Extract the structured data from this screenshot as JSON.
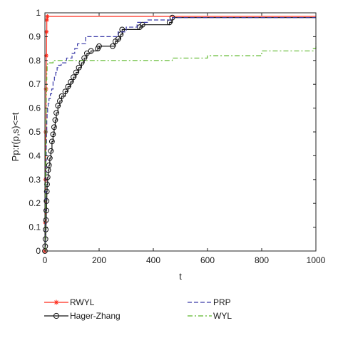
{
  "chart_data": {
    "type": "line",
    "xlabel": "t",
    "ylabel": "Pp:r(p,s)<=t",
    "xlim": [
      0,
      1000
    ],
    "ylim": [
      0,
      1
    ],
    "x_ticks": [
      0,
      200,
      400,
      600,
      800,
      1000
    ],
    "y_ticks": [
      0,
      0.1,
      0.2,
      0.3,
      0.4,
      0.5,
      0.6,
      0.7,
      0.8,
      0.9,
      1
    ],
    "x_tick_labels": [
      "0",
      "200",
      "400",
      "600",
      "800",
      "1000"
    ],
    "y_tick_labels": [
      "0",
      "0.1",
      "0.2",
      "0.3",
      "0.4",
      "0.5",
      "0.6",
      "0.7",
      "0.8",
      "0.9",
      "1"
    ],
    "grid": false,
    "legend_position": "below",
    "series": [
      {
        "name": "RWYL",
        "color": "#ff2a1a",
        "style": "solid",
        "marker": "star",
        "points": [
          [
            0,
            0
          ],
          [
            1,
            0.12
          ],
          [
            2,
            0.3
          ],
          [
            3,
            0.5
          ],
          [
            4,
            0.68
          ],
          [
            5,
            0.82
          ],
          [
            6,
            0.92
          ],
          [
            7,
            0.97
          ],
          [
            9,
            0.985
          ],
          [
            1000,
            0.985
          ]
        ]
      },
      {
        "name": "Hager-Zhang",
        "color": "#111111",
        "style": "solid",
        "marker": "circle",
        "points": [
          [
            0,
            0
          ],
          [
            1,
            0.02
          ],
          [
            2,
            0.05
          ],
          [
            3,
            0.09
          ],
          [
            4,
            0.13
          ],
          [
            5,
            0.17
          ],
          [
            6,
            0.21
          ],
          [
            7,
            0.25
          ],
          [
            8,
            0.28
          ],
          [
            10,
            0.31
          ],
          [
            12,
            0.34
          ],
          [
            15,
            0.36
          ],
          [
            18,
            0.39
          ],
          [
            22,
            0.42
          ],
          [
            26,
            0.46
          ],
          [
            30,
            0.49
          ],
          [
            34,
            0.52
          ],
          [
            38,
            0.55
          ],
          [
            42,
            0.58
          ],
          [
            48,
            0.61
          ],
          [
            55,
            0.63
          ],
          [
            62,
            0.65
          ],
          [
            75,
            0.67
          ],
          [
            85,
            0.69
          ],
          [
            95,
            0.71
          ],
          [
            105,
            0.73
          ],
          [
            115,
            0.75
          ],
          [
            125,
            0.77
          ],
          [
            135,
            0.79
          ],
          [
            145,
            0.81
          ],
          [
            155,
            0.83
          ],
          [
            170,
            0.84
          ],
          [
            195,
            0.85
          ],
          [
            200,
            0.86
          ],
          [
            250,
            0.86
          ],
          [
            260,
            0.88
          ],
          [
            270,
            0.89
          ],
          [
            280,
            0.91
          ],
          [
            285,
            0.93
          ],
          [
            350,
            0.94
          ],
          [
            360,
            0.95
          ],
          [
            460,
            0.96
          ],
          [
            470,
            0.98
          ],
          [
            1000,
            0.98
          ]
        ]
      },
      {
        "name": "PRP",
        "color": "#3a3aa8",
        "style": "dashed",
        "marker": "none",
        "points": [
          [
            0,
            0
          ],
          [
            1,
            0.1
          ],
          [
            2,
            0.2
          ],
          [
            3,
            0.3
          ],
          [
            4,
            0.38
          ],
          [
            5,
            0.45
          ],
          [
            6,
            0.5
          ],
          [
            7,
            0.55
          ],
          [
            8,
            0.58
          ],
          [
            10,
            0.6
          ],
          [
            12,
            0.62
          ],
          [
            15,
            0.64
          ],
          [
            20,
            0.66
          ],
          [
            25,
            0.68
          ],
          [
            30,
            0.71
          ],
          [
            35,
            0.73
          ],
          [
            40,
            0.75
          ],
          [
            45,
            0.77
          ],
          [
            50,
            0.78
          ],
          [
            60,
            0.79
          ],
          [
            80,
            0.81
          ],
          [
            100,
            0.83
          ],
          [
            110,
            0.85
          ],
          [
            120,
            0.87
          ],
          [
            150,
            0.9
          ],
          [
            270,
            0.92
          ],
          [
            300,
            0.94
          ],
          [
            340,
            0.96
          ],
          [
            380,
            0.97
          ],
          [
            470,
            0.98
          ],
          [
            1000,
            0.98
          ]
        ]
      },
      {
        "name": "WYL",
        "color": "#5cb82a",
        "style": "dashdot",
        "marker": "none",
        "points": [
          [
            0,
            0
          ],
          [
            1,
            0.15
          ],
          [
            2,
            0.3
          ],
          [
            3,
            0.45
          ],
          [
            4,
            0.58
          ],
          [
            5,
            0.66
          ],
          [
            6,
            0.72
          ],
          [
            7,
            0.75
          ],
          [
            8,
            0.78
          ],
          [
            10,
            0.79
          ],
          [
            30,
            0.8
          ],
          [
            460,
            0.8
          ],
          [
            470,
            0.81
          ],
          [
            600,
            0.82
          ],
          [
            800,
            0.84
          ],
          [
            990,
            0.85
          ],
          [
            1000,
            0.87
          ]
        ]
      }
    ]
  }
}
